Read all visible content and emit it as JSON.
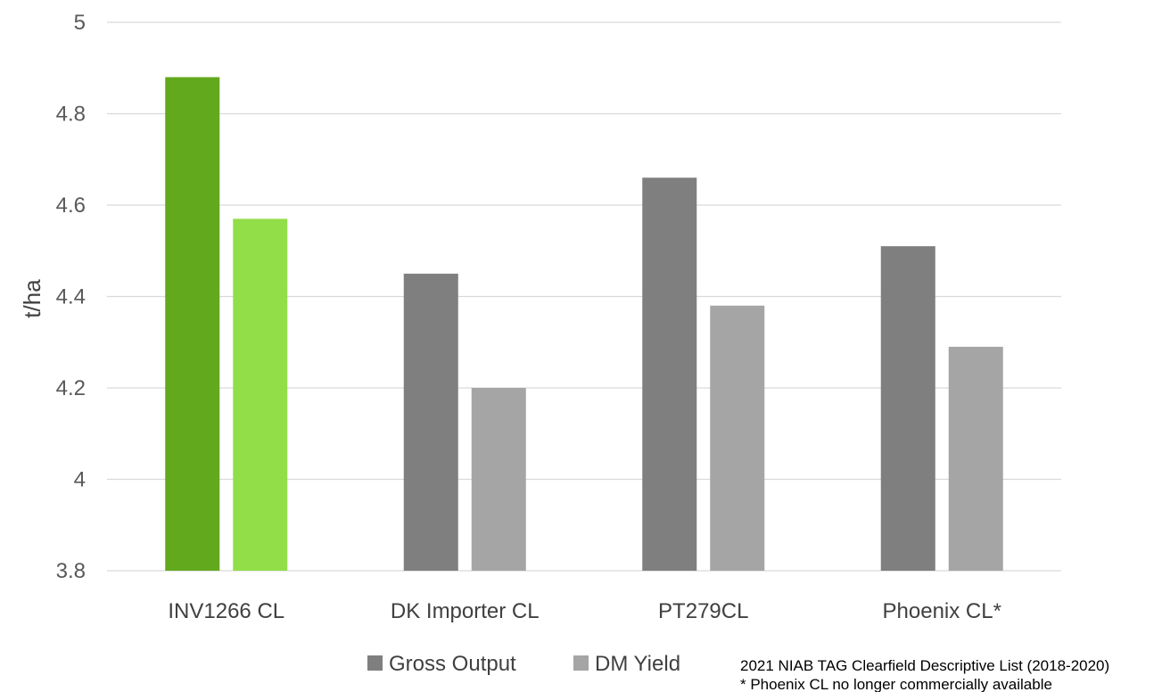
{
  "chart_data": {
    "type": "bar",
    "title": "",
    "xlabel": "",
    "ylabel": "t/ha",
    "ylim": [
      3.8,
      5
    ],
    "yticks": [
      "3.8",
      "4",
      "4.2",
      "4.4",
      "4.6",
      "4.8",
      "5"
    ],
    "categories": [
      "INV1266 CL",
      "DK Importer CL",
      "PT279CL",
      "Phoenix CL*"
    ],
    "series": [
      {
        "name": "Gross Output",
        "values": [
          4.88,
          4.45,
          4.66,
          4.51
        ],
        "color": "#7f7f7f",
        "highlight_color": "#63a91e"
      },
      {
        "name": "DM Yield",
        "values": [
          4.57,
          4.2,
          4.38,
          4.29
        ],
        "color": "#a5a5a5",
        "highlight_color": "#92de48"
      }
    ],
    "highlight_category_index": 0,
    "grid": true,
    "legend_position": "bottom"
  },
  "notes": [
    "2021 NIAB TAG Clearfield Descriptive List (2018-2020)",
    "* Phoenix CL no longer commercially available"
  ]
}
